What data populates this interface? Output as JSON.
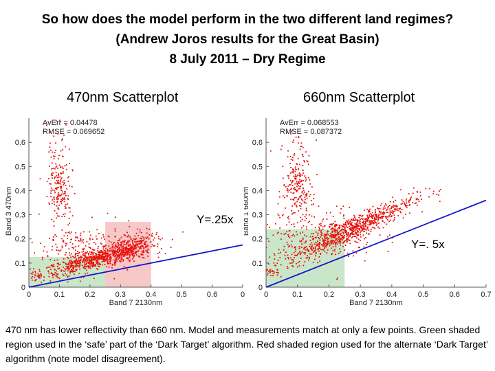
{
  "slide": {
    "title_lines": [
      "So how does the model perform in the two different land regimes?",
      "(Andrew Joros results for the Great Basin)",
      "8 July 2011 – Dry Regime"
    ],
    "caption": "470 nm has lower reflectivity than 660 nm.  Model and measurements match at only a few points.  Green shaded region used in the ‘safe’ part of the ‘Dark Target’ algorithm. Red shaded region used for the alternate ‘Dark Target’ algorithm (note model disagreement).",
    "colors": {
      "points": "#e8120c",
      "model_line": "#1515c8",
      "green_region": "#c9e6c9",
      "red_region": "#f6c8c8"
    }
  },
  "chart_data": [
    {
      "type": "scatter",
      "title": "470nm Scatterplot",
      "xlabel": "Band 7 2130nm",
      "ylabel": "Band 3 470nm",
      "xlim": [
        0,
        0.7
      ],
      "ylim": [
        0,
        0.7
      ],
      "xticks": [
        "0",
        "0.1",
        "0.2",
        "0.3",
        "0.4",
        "0.5",
        "0.6",
        "0"
      ],
      "yticks": [
        "0",
        "0.1",
        "0.2",
        "0.3",
        "0.4",
        "0.5",
        "0.6"
      ],
      "stats": [
        "AvErr = 0.04478",
        "RMSE = 0.069652"
      ],
      "equation": "Y=.25x",
      "model_line": {
        "x": [
          0.0,
          0.7
        ],
        "y": [
          0.0,
          0.175
        ]
      },
      "regions": [
        {
          "color": "green",
          "x": [
            0.0,
            0.25
          ],
          "y": [
            0.0,
            0.125
          ]
        },
        {
          "color": "red",
          "x": [
            0.25,
            0.4
          ],
          "y": [
            0.0,
            0.27
          ]
        }
      ],
      "clusters": [
        {
          "cx": 0.22,
          "cy": 0.115,
          "sx": 0.09,
          "sy": 0.018,
          "slope": 0.35,
          "n": 650
        },
        {
          "cx": 0.33,
          "cy": 0.16,
          "sx": 0.04,
          "sy": 0.03,
          "slope": 0.4,
          "n": 250
        },
        {
          "cx": 0.1,
          "cy": 0.35,
          "sx": 0.02,
          "sy": 0.13,
          "slope": 0,
          "n": 200
        },
        {
          "cx": 0.18,
          "cy": 0.16,
          "sx": 0.09,
          "sy": 0.05,
          "slope": 0,
          "n": 220
        },
        {
          "cx": 0.02,
          "cy": 0.05,
          "sx": 0.01,
          "sy": 0.01,
          "slope": 0,
          "n": 20
        }
      ]
    },
    {
      "type": "scatter",
      "title": "660nm Scatterplot",
      "xlabel": "Band 7 2130nm",
      "ylabel": "Band 1 660nm",
      "xlim": [
        0,
        0.7
      ],
      "ylim": [
        0,
        0.7
      ],
      "xticks": [
        "0",
        "0.1",
        "0.2",
        "0.3",
        "0.4",
        "0.5",
        "0.6",
        "0.7"
      ],
      "yticks": [
        "0",
        "0.1",
        "0.2",
        "0.3",
        "0.4",
        "0.5",
        "0.6"
      ],
      "stats": [
        "AvErr = 0.068553",
        "RMSE = 0.087372"
      ],
      "equation": "Y=. 5x",
      "model_line": {
        "x": [
          0.0,
          0.7
        ],
        "y": [
          0.0,
          0.36
        ]
      },
      "regions": [
        {
          "color": "green",
          "x": [
            0.0,
            0.25
          ],
          "y": [
            0.0,
            0.24
          ]
        }
      ],
      "clusters": [
        {
          "cx": 0.27,
          "cy": 0.24,
          "sx": 0.1,
          "sy": 0.025,
          "slope": 0.6,
          "n": 800
        },
        {
          "cx": 0.1,
          "cy": 0.36,
          "sx": 0.025,
          "sy": 0.12,
          "slope": 0,
          "n": 220
        },
        {
          "cx": 0.17,
          "cy": 0.22,
          "sx": 0.09,
          "sy": 0.06,
          "slope": 0,
          "n": 250
        },
        {
          "cx": 0.02,
          "cy": 0.06,
          "sx": 0.012,
          "sy": 0.012,
          "slope": 0,
          "n": 25
        }
      ]
    }
  ]
}
